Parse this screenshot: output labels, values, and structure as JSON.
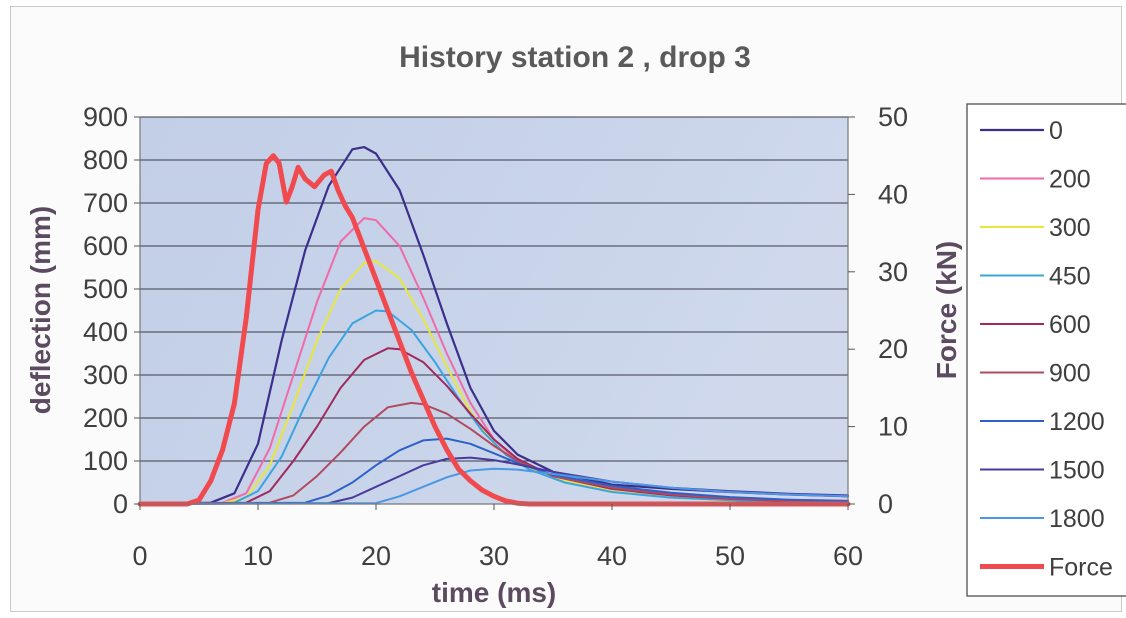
{
  "chart_data": {
    "type": "line",
    "title": "History station 2 , drop 3",
    "xlabel": "time (ms)",
    "ylabel": "deflection (mm)",
    "y2label": "Force (kN)",
    "xlim": [
      0,
      60
    ],
    "ylim": [
      0,
      900
    ],
    "y2lim": [
      0,
      50
    ],
    "xticks": [
      "0",
      "10",
      "20",
      "30",
      "40",
      "50",
      "60"
    ],
    "yticks": [
      "0",
      "100",
      "200",
      "300",
      "400",
      "500",
      "600",
      "700",
      "800",
      "900"
    ],
    "y2ticks": [
      "0",
      "10",
      "20",
      "30",
      "40",
      "50"
    ],
    "grid": "horizontal",
    "legend_position": "right",
    "series": [
      {
        "name": "0",
        "axis": "left",
        "color": "#3c2f8c",
        "width": 2.2,
        "points": [
          [
            0,
            0
          ],
          [
            6,
            3
          ],
          [
            8,
            25
          ],
          [
            10,
            140
          ],
          [
            12,
            380
          ],
          [
            14,
            590
          ],
          [
            16,
            740
          ],
          [
            18,
            825
          ],
          [
            19,
            830
          ],
          [
            20,
            815
          ],
          [
            22,
            730
          ],
          [
            24,
            580
          ],
          [
            26,
            420
          ],
          [
            28,
            270
          ],
          [
            30,
            170
          ],
          [
            32,
            115
          ],
          [
            35,
            75
          ],
          [
            40,
            45
          ],
          [
            45,
            35
          ],
          [
            50,
            28
          ],
          [
            55,
            22
          ],
          [
            60,
            18
          ]
        ]
      },
      {
        "name": "200",
        "axis": "left",
        "color": "#f06aa8",
        "width": 2,
        "points": [
          [
            0,
            0
          ],
          [
            7,
            3
          ],
          [
            9,
            25
          ],
          [
            11,
            130
          ],
          [
            13,
            300
          ],
          [
            15,
            470
          ],
          [
            17,
            610
          ],
          [
            19,
            665
          ],
          [
            20,
            660
          ],
          [
            22,
            600
          ],
          [
            24,
            480
          ],
          [
            26,
            350
          ],
          [
            28,
            235
          ],
          [
            30,
            150
          ],
          [
            32,
            100
          ],
          [
            35,
            65
          ],
          [
            40,
            35
          ],
          [
            45,
            22
          ],
          [
            50,
            15
          ],
          [
            55,
            10
          ],
          [
            60,
            8
          ]
        ]
      },
      {
        "name": "300",
        "axis": "left",
        "color": "#e8e63c",
        "width": 2,
        "points": [
          [
            0,
            0
          ],
          [
            7,
            2
          ],
          [
            9,
            15
          ],
          [
            11,
            90
          ],
          [
            13,
            230
          ],
          [
            15,
            380
          ],
          [
            17,
            500
          ],
          [
            19,
            560
          ],
          [
            20,
            565
          ],
          [
            22,
            525
          ],
          [
            24,
            430
          ],
          [
            26,
            320
          ],
          [
            28,
            215
          ],
          [
            30,
            140
          ],
          [
            32,
            95
          ],
          [
            35,
            60
          ],
          [
            40,
            30
          ],
          [
            45,
            15
          ],
          [
            50,
            8
          ],
          [
            55,
            5
          ],
          [
            60,
            3
          ]
        ]
      },
      {
        "name": "450",
        "axis": "left",
        "color": "#3aa4e0",
        "width": 2,
        "points": [
          [
            0,
            0
          ],
          [
            8,
            3
          ],
          [
            10,
            30
          ],
          [
            12,
            110
          ],
          [
            14,
            230
          ],
          [
            16,
            340
          ],
          [
            18,
            420
          ],
          [
            20,
            450
          ],
          [
            21,
            448
          ],
          [
            23,
            405
          ],
          [
            25,
            330
          ],
          [
            27,
            245
          ],
          [
            29,
            170
          ],
          [
            31,
            115
          ],
          [
            33,
            80
          ],
          [
            36,
            50
          ],
          [
            40,
            28
          ],
          [
            45,
            15
          ],
          [
            50,
            9
          ],
          [
            55,
            5
          ],
          [
            60,
            3
          ]
        ]
      },
      {
        "name": "600",
        "axis": "left",
        "color": "#9e2a5e",
        "width": 2,
        "points": [
          [
            0,
            0
          ],
          [
            9,
            3
          ],
          [
            11,
            30
          ],
          [
            13,
            100
          ],
          [
            15,
            180
          ],
          [
            17,
            270
          ],
          [
            19,
            335
          ],
          [
            21,
            362
          ],
          [
            22,
            360
          ],
          [
            24,
            330
          ],
          [
            26,
            275
          ],
          [
            28,
            210
          ],
          [
            30,
            150
          ],
          [
            32,
            105
          ],
          [
            35,
            65
          ],
          [
            40,
            35
          ],
          [
            45,
            20
          ],
          [
            50,
            12
          ],
          [
            55,
            7
          ],
          [
            60,
            5
          ]
        ]
      },
      {
        "name": "900",
        "axis": "left",
        "color": "#b04a5e",
        "width": 2,
        "points": [
          [
            0,
            0
          ],
          [
            11,
            3
          ],
          [
            13,
            20
          ],
          [
            15,
            65
          ],
          [
            17,
            120
          ],
          [
            19,
            180
          ],
          [
            21,
            225
          ],
          [
            23,
            235
          ],
          [
            24,
            232
          ],
          [
            26,
            210
          ],
          [
            28,
            175
          ],
          [
            30,
            135
          ],
          [
            32,
            100
          ],
          [
            35,
            65
          ],
          [
            40,
            38
          ],
          [
            45,
            22
          ],
          [
            50,
            13
          ],
          [
            55,
            8
          ],
          [
            60,
            5
          ]
        ]
      },
      {
        "name": "1200",
        "axis": "left",
        "color": "#2c62c8",
        "width": 2,
        "points": [
          [
            0,
            0
          ],
          [
            14,
            3
          ],
          [
            16,
            20
          ],
          [
            18,
            50
          ],
          [
            20,
            90
          ],
          [
            22,
            125
          ],
          [
            24,
            148
          ],
          [
            26,
            152
          ],
          [
            28,
            140
          ],
          [
            30,
            118
          ],
          [
            32,
            95
          ],
          [
            35,
            68
          ],
          [
            40,
            42
          ],
          [
            45,
            26
          ],
          [
            50,
            16
          ],
          [
            55,
            10
          ],
          [
            60,
            7
          ]
        ]
      },
      {
        "name": "1500",
        "axis": "left",
        "color": "#4a3a9c",
        "width": 2,
        "points": [
          [
            0,
            0
          ],
          [
            16,
            2
          ],
          [
            18,
            15
          ],
          [
            20,
            40
          ],
          [
            22,
            65
          ],
          [
            24,
            90
          ],
          [
            26,
            105
          ],
          [
            28,
            108
          ],
          [
            30,
            102
          ],
          [
            32,
            92
          ],
          [
            35,
            75
          ],
          [
            40,
            52
          ],
          [
            45,
            38
          ],
          [
            50,
            30
          ],
          [
            55,
            24
          ],
          [
            60,
            20
          ]
        ]
      },
      {
        "name": "1800",
        "axis": "left",
        "color": "#4a98e6",
        "width": 2,
        "points": [
          [
            0,
            0
          ],
          [
            20,
            2
          ],
          [
            22,
            18
          ],
          [
            24,
            40
          ],
          [
            26,
            62
          ],
          [
            28,
            78
          ],
          [
            30,
            82
          ],
          [
            32,
            80
          ],
          [
            35,
            70
          ],
          [
            40,
            52
          ],
          [
            45,
            38
          ],
          [
            50,
            28
          ],
          [
            55,
            22
          ],
          [
            60,
            18
          ]
        ]
      },
      {
        "name": "Force",
        "axis": "right",
        "color": "#f04a4e",
        "width": 5,
        "points": [
          [
            0,
            0
          ],
          [
            4,
            0
          ],
          [
            5,
            0.5
          ],
          [
            6,
            3
          ],
          [
            7,
            7
          ],
          [
            8,
            13
          ],
          [
            9,
            24
          ],
          [
            10,
            38
          ],
          [
            10.7,
            44
          ],
          [
            11.3,
            45
          ],
          [
            11.8,
            44
          ],
          [
            12.4,
            39
          ],
          [
            12.9,
            41
          ],
          [
            13.4,
            43.5
          ],
          [
            14,
            42
          ],
          [
            14.8,
            41
          ],
          [
            15.6,
            42.5
          ],
          [
            16.2,
            43
          ],
          [
            16.8,
            40.5
          ],
          [
            17.4,
            38.5
          ],
          [
            18,
            37
          ],
          [
            19,
            33
          ],
          [
            20,
            29
          ],
          [
            21,
            25
          ],
          [
            22,
            21
          ],
          [
            23,
            17
          ],
          [
            24,
            13.5
          ],
          [
            25,
            10
          ],
          [
            26,
            7
          ],
          [
            27,
            4.5
          ],
          [
            28,
            3
          ],
          [
            29,
            1.8
          ],
          [
            30,
            1
          ],
          [
            31,
            0.4
          ],
          [
            32,
            0.1
          ],
          [
            33,
            0
          ],
          [
            60,
            0
          ]
        ]
      }
    ]
  }
}
